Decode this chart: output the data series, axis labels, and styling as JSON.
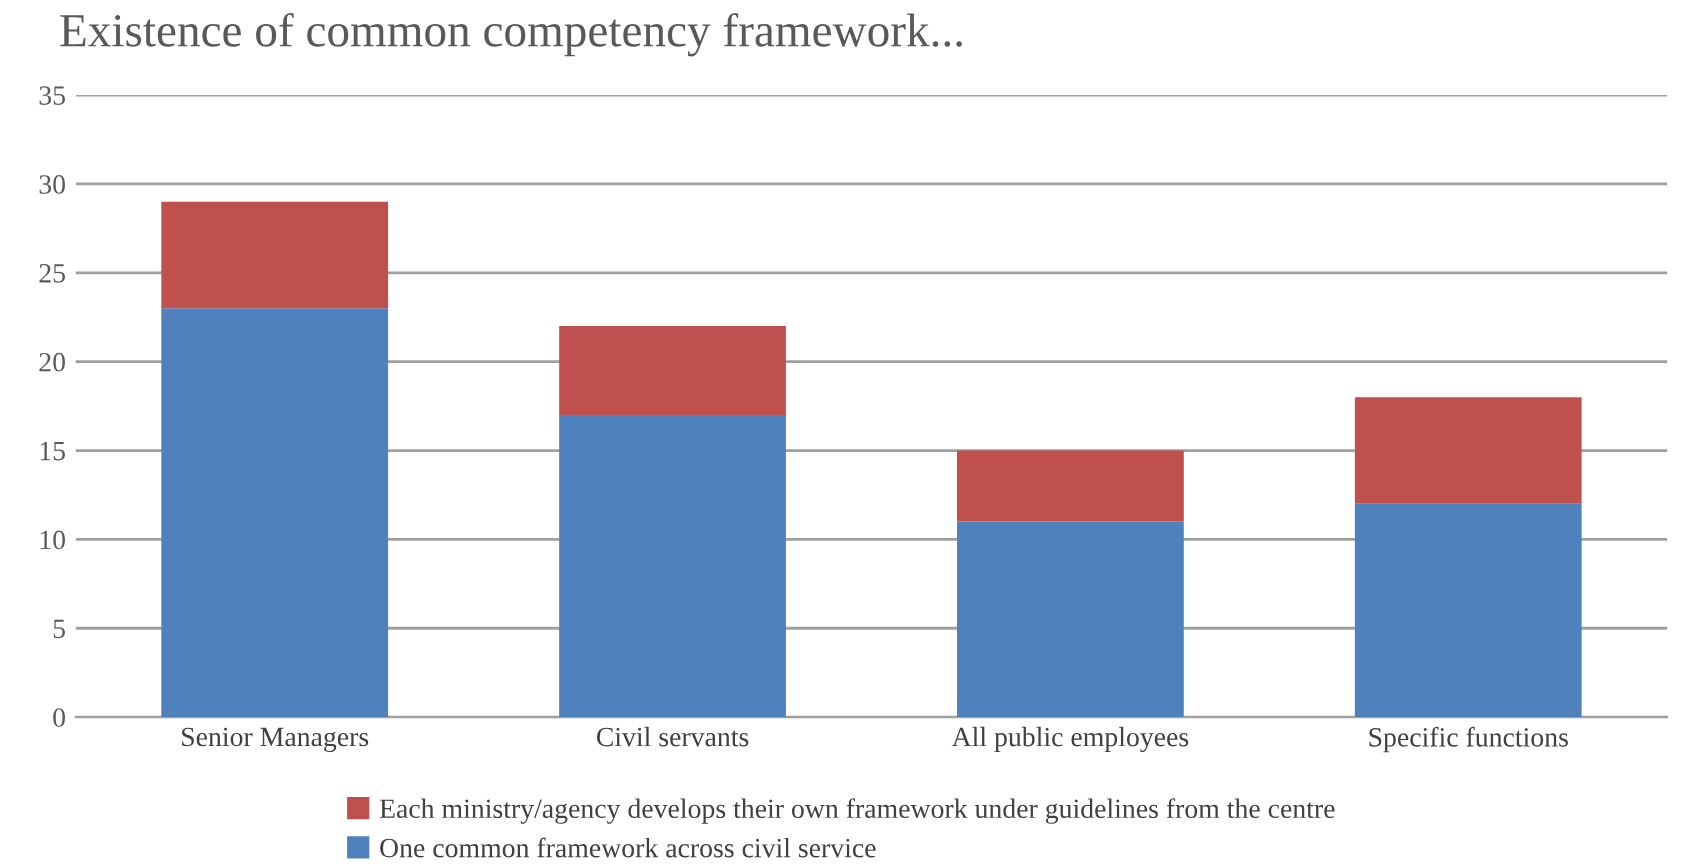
{
  "chart_data": {
    "type": "bar",
    "stacked": true,
    "title": "Existence of common competency framework...",
    "categories": [
      "Senior Managers",
      "Civil servants",
      "All public employees",
      "Specific functions"
    ],
    "series": [
      {
        "name": "One common framework across civil service",
        "color": "#4f81bd",
        "values": [
          23,
          17,
          11,
          12
        ]
      },
      {
        "name": "Each ministry/agency develops their own framework under guidelines from the centre",
        "color": "#c0504d",
        "values": [
          6,
          5,
          4,
          6
        ]
      }
    ],
    "ylim": [
      0,
      35
    ],
    "yticks": [
      0,
      5,
      10,
      15,
      20,
      25,
      30,
      35
    ],
    "grid": "y",
    "legend": "bottom"
  }
}
